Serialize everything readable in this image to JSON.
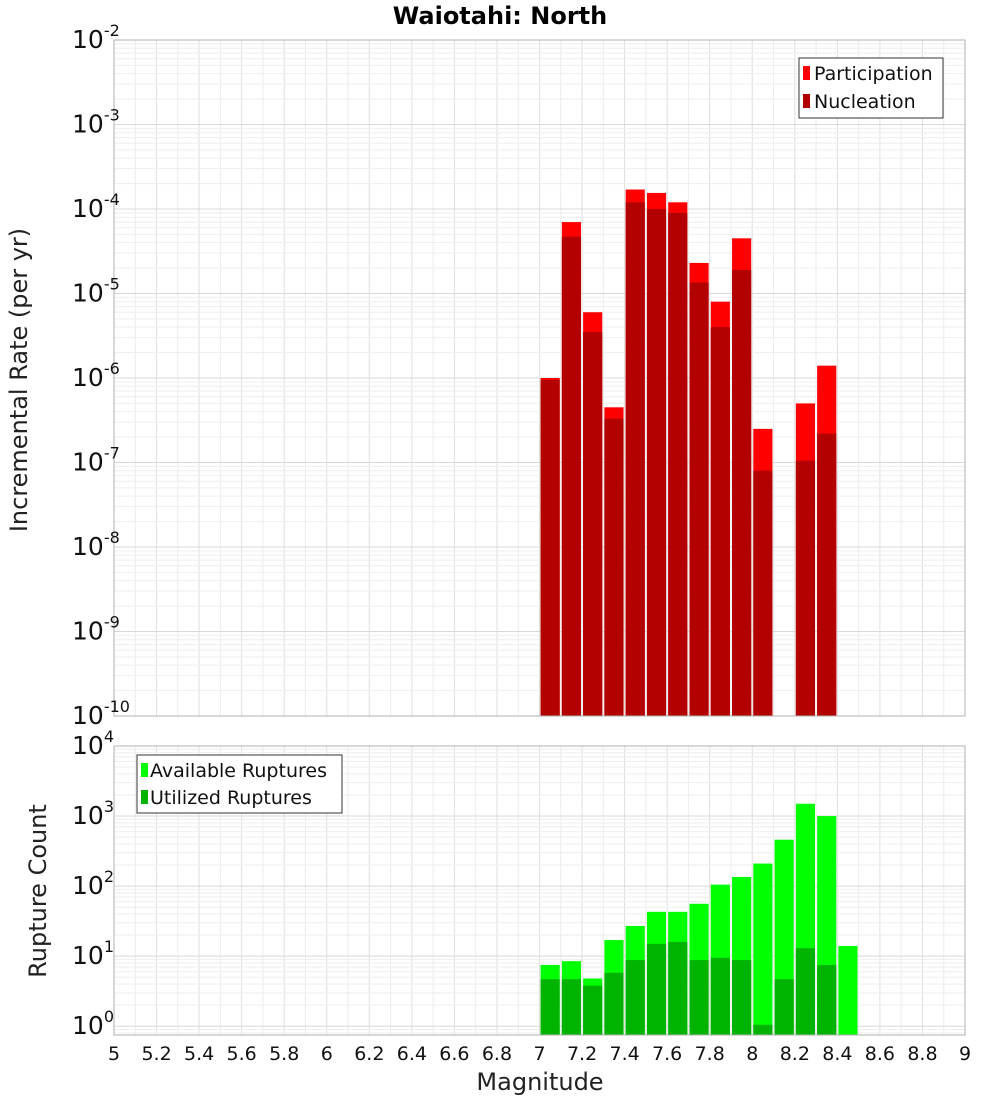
{
  "chart_data": [
    {
      "type": "bar",
      "title": "Waiotahi: North",
      "xlabel": "",
      "ylabel": "Incremental Rate (per yr)",
      "yscale": "log",
      "ylim": [
        1e-10,
        0.01
      ],
      "xlim": [
        5,
        9
      ],
      "yticks": [
        {
          "base": "10",
          "exp": "-10"
        },
        {
          "base": "10",
          "exp": "-9"
        },
        {
          "base": "10",
          "exp": "-8"
        },
        {
          "base": "10",
          "exp": "-7"
        },
        {
          "base": "10",
          "exp": "-6"
        },
        {
          "base": "10",
          "exp": "-5"
        },
        {
          "base": "10",
          "exp": "-4"
        },
        {
          "base": "10",
          "exp": "-3"
        },
        {
          "base": "10",
          "exp": "-2"
        }
      ],
      "grid": true,
      "legend_position": "top-right",
      "x": [
        7.05,
        7.15,
        7.25,
        7.35,
        7.45,
        7.55,
        7.65,
        7.75,
        7.85,
        7.95,
        8.05,
        8.15,
        8.25,
        8.35
      ],
      "series": [
        {
          "name": "Participation",
          "color": "#ff0000",
          "values": [
            1e-06,
            7e-05,
            6e-06,
            4.5e-07,
            0.00017,
            0.000155,
            0.00012,
            2.3e-05,
            8e-06,
            4.5e-05,
            2.5e-07,
            null,
            5e-07,
            1.4e-06
          ]
        },
        {
          "name": "Nucleation",
          "color": "#b30000",
          "values": [
            9.5e-07,
            4.7e-05,
            3.5e-06,
            3.3e-07,
            0.00012,
            0.0001,
            9e-05,
            1.35e-05,
            4e-06,
            1.9e-05,
            8e-08,
            null,
            1.05e-07,
            2.2e-07
          ]
        }
      ]
    },
    {
      "type": "bar",
      "title": "",
      "xlabel": "Magnitude",
      "ylabel": "Rupture Count",
      "yscale": "log",
      "ylim": [
        0.75,
        10000.0
      ],
      "xlim": [
        5,
        9
      ],
      "yticks": [
        {
          "base": "10",
          "exp": "0"
        },
        {
          "base": "10",
          "exp": "1"
        },
        {
          "base": "10",
          "exp": "2"
        },
        {
          "base": "10",
          "exp": "3"
        },
        {
          "base": "10",
          "exp": "4"
        }
      ],
      "xticks": [
        "5",
        "5.2",
        "5.4",
        "5.6",
        "5.8",
        "6",
        "6.2",
        "6.4",
        "6.6",
        "6.8",
        "7",
        "7.2",
        "7.4",
        "7.6",
        "7.8",
        "8",
        "8.2",
        "8.4",
        "8.6",
        "8.8",
        "9"
      ],
      "grid": true,
      "legend_position": "top-left",
      "x": [
        7.05,
        7.15,
        7.25,
        7.35,
        7.45,
        7.55,
        7.65,
        7.75,
        7.85,
        7.95,
        8.05,
        8.15,
        8.25,
        8.35,
        8.45
      ],
      "series": [
        {
          "name": "Available Ruptures",
          "color": "#00ff00",
          "values": [
            7.5,
            8.5,
            4.8,
            17,
            27,
            43,
            43,
            56,
            105,
            135,
            210,
            460,
            1500,
            1000,
            14
          ]
        },
        {
          "name": "Utilized Ruptures",
          "color": "#00b300",
          "values": [
            4.7,
            4.7,
            3.8,
            5.8,
            8.8,
            15,
            16,
            8.8,
            9.5,
            8.8,
            1.05,
            4.7,
            13,
            7.5,
            null
          ]
        }
      ]
    }
  ]
}
